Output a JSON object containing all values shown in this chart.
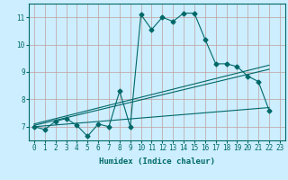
{
  "xlabel": "Humidex (Indice chaleur)",
  "bg_color": "#cceeff",
  "grid_color": "#c0a0a0",
  "line_color": "#006868",
  "xlim": [
    -0.5,
    23.5
  ],
  "ylim": [
    6.5,
    11.5
  ],
  "yticks": [
    7,
    8,
    9,
    10,
    11
  ],
  "xticks": [
    0,
    1,
    2,
    3,
    4,
    5,
    6,
    7,
    8,
    9,
    10,
    11,
    12,
    13,
    14,
    15,
    16,
    17,
    18,
    19,
    20,
    21,
    22,
    23
  ],
  "curve1_x": [
    0,
    1,
    2,
    3,
    4,
    5,
    6,
    7,
    8,
    9,
    10,
    11,
    12,
    13,
    14,
    15,
    16,
    17,
    18,
    19,
    20,
    21,
    22
  ],
  "curve1_y": [
    7.0,
    6.9,
    7.2,
    7.3,
    7.05,
    6.65,
    7.1,
    7.0,
    8.3,
    7.0,
    11.1,
    10.55,
    11.0,
    10.85,
    11.15,
    11.15,
    10.2,
    9.3,
    9.3,
    9.2,
    8.85,
    8.65,
    7.6
  ],
  "line1_x": [
    0,
    22
  ],
  "line1_y": [
    7.0,
    7.7
  ],
  "line2_x": [
    0,
    22
  ],
  "line2_y": [
    7.05,
    9.1
  ],
  "line3_x": [
    0,
    22
  ],
  "line3_y": [
    7.1,
    9.25
  ]
}
